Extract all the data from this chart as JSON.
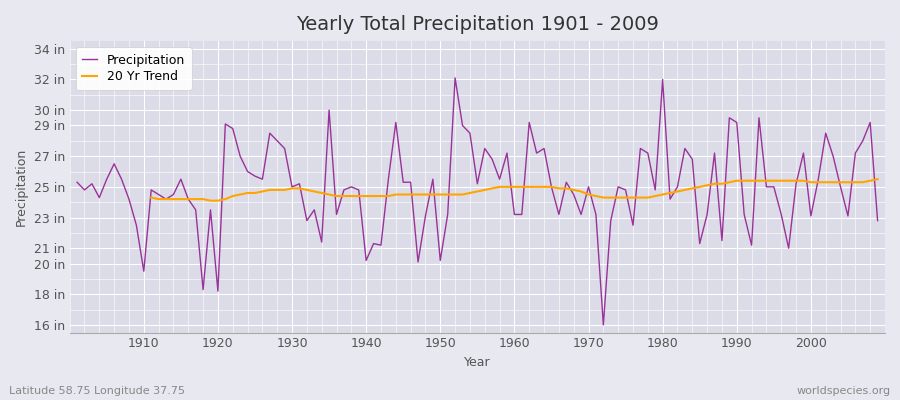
{
  "title": "Yearly Total Precipitation 1901 - 2009",
  "xlabel": "Year",
  "ylabel": "Precipitation",
  "years": [
    1901,
    1902,
    1903,
    1904,
    1905,
    1906,
    1907,
    1908,
    1909,
    1910,
    1911,
    1912,
    1913,
    1914,
    1915,
    1916,
    1917,
    1918,
    1919,
    1920,
    1921,
    1922,
    1923,
    1924,
    1925,
    1926,
    1927,
    1928,
    1929,
    1930,
    1931,
    1932,
    1933,
    1934,
    1935,
    1936,
    1937,
    1938,
    1939,
    1940,
    1941,
    1942,
    1943,
    1944,
    1945,
    1946,
    1947,
    1948,
    1949,
    1950,
    1951,
    1952,
    1953,
    1954,
    1955,
    1956,
    1957,
    1958,
    1959,
    1960,
    1961,
    1962,
    1963,
    1964,
    1965,
    1966,
    1967,
    1968,
    1969,
    1970,
    1971,
    1972,
    1973,
    1974,
    1975,
    1976,
    1977,
    1978,
    1979,
    1980,
    1981,
    1982,
    1983,
    1984,
    1985,
    1986,
    1987,
    1988,
    1989,
    1990,
    1991,
    1992,
    1993,
    1994,
    1995,
    1996,
    1997,
    1998,
    1999,
    2000,
    2001,
    2002,
    2003,
    2004,
    2005,
    2006,
    2007,
    2008,
    2009
  ],
  "precip": [
    25.3,
    24.8,
    25.2,
    24.3,
    25.5,
    26.5,
    25.5,
    24.2,
    22.5,
    19.5,
    24.8,
    24.5,
    24.2,
    24.5,
    25.5,
    24.2,
    23.5,
    18.3,
    23.5,
    18.2,
    29.1,
    28.8,
    27.0,
    26.0,
    25.7,
    25.5,
    28.5,
    28.0,
    27.5,
    25.0,
    25.2,
    22.8,
    23.5,
    21.4,
    30.0,
    23.2,
    24.8,
    25.0,
    24.8,
    20.2,
    21.3,
    21.2,
    25.5,
    29.2,
    25.3,
    25.3,
    20.1,
    23.1,
    25.5,
    20.2,
    23.2,
    32.1,
    29.0,
    28.5,
    25.2,
    27.5,
    26.8,
    25.5,
    27.2,
    23.2,
    23.2,
    29.2,
    27.2,
    27.5,
    25.0,
    23.2,
    25.3,
    24.5,
    23.2,
    25.0,
    23.2,
    16.0,
    22.8,
    25.0,
    24.8,
    22.5,
    27.5,
    27.2,
    24.8,
    32.0,
    24.2,
    25.0,
    27.5,
    26.8,
    21.3,
    23.2,
    27.2,
    21.5,
    29.5,
    29.2,
    23.2,
    21.2,
    29.5,
    25.0,
    25.0,
    23.2,
    21.0,
    25.2,
    27.2,
    23.1,
    25.5,
    28.5,
    27.0,
    25.0,
    23.1,
    27.2,
    28.0,
    29.2,
    22.8
  ],
  "trend": [
    null,
    null,
    null,
    null,
    null,
    null,
    null,
    null,
    null,
    null,
    24.3,
    24.2,
    24.2,
    24.2,
    24.2,
    24.2,
    24.2,
    24.2,
    24.1,
    24.1,
    24.2,
    24.4,
    24.5,
    24.6,
    24.6,
    24.7,
    24.8,
    24.8,
    24.8,
    24.9,
    24.9,
    24.8,
    24.7,
    24.6,
    24.5,
    24.4,
    24.4,
    24.4,
    24.4,
    24.4,
    24.4,
    24.4,
    24.4,
    24.5,
    24.5,
    24.5,
    24.5,
    24.5,
    24.5,
    24.5,
    24.5,
    24.5,
    24.5,
    24.6,
    24.7,
    24.8,
    24.9,
    25.0,
    25.0,
    25.0,
    25.0,
    25.0,
    25.0,
    25.0,
    25.0,
    24.9,
    24.9,
    24.8,
    24.7,
    24.5,
    24.4,
    24.3,
    24.3,
    24.3,
    24.3,
    24.3,
    24.3,
    24.3,
    24.4,
    24.5,
    24.6,
    24.7,
    24.8,
    24.9,
    25.0,
    25.1,
    25.2,
    25.2,
    25.3,
    25.4,
    25.4,
    25.4,
    25.4,
    25.4,
    25.4,
    25.4,
    25.4,
    25.4,
    25.4,
    25.3,
    25.3,
    25.3,
    25.3,
    25.3,
    25.3,
    25.3,
    25.3,
    25.4,
    25.5
  ],
  "precip_color": "#993399",
  "trend_color": "#FFA500",
  "bg_color": "#E8E8F0",
  "plot_bg_color": "#DCDCE8",
  "grid_color": "#FFFFFF",
  "ytick_labels": [
    "16 in",
    "18 in",
    "20 in",
    "21 in",
    "23 in",
    "25 in",
    "27 in",
    "29 in",
    "30 in",
    "32 in",
    "34 in"
  ],
  "ytick_values": [
    16,
    18,
    20,
    21,
    23,
    25,
    27,
    29,
    30,
    32,
    34
  ],
  "ylim": [
    15.5,
    34.5
  ],
  "xlim": [
    1900,
    2010
  ],
  "xtick_values": [
    1910,
    1920,
    1930,
    1940,
    1950,
    1960,
    1970,
    1980,
    1990,
    2000
  ],
  "footer_left": "Latitude 58.75 Longitude 37.75",
  "footer_right": "worldspecies.org",
  "legend_labels": [
    "Precipitation",
    "20 Yr Trend"
  ],
  "title_fontsize": 14,
  "axis_label_fontsize": 9,
  "tick_fontsize": 9,
  "legend_fontsize": 9,
  "footer_fontsize": 8
}
